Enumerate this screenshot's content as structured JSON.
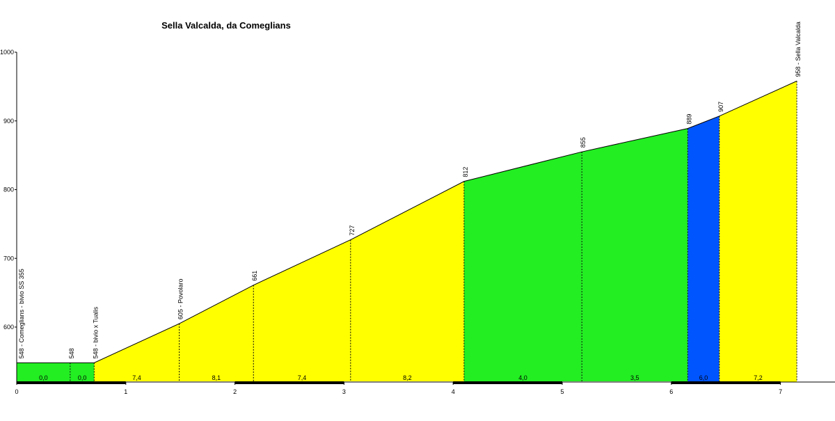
{
  "chart_data": {
    "type": "elevation_profile",
    "title": "Sella Valcalda, da Comeglians",
    "x": [
      0,
      0.49,
      0.71,
      1.49,
      2.17,
      3.06,
      4.1,
      5.18,
      6.15,
      6.44,
      7.15
    ],
    "values": [
      548,
      548,
      548,
      605,
      661,
      727,
      812,
      855,
      889,
      907,
      958
    ],
    "value_labels": [
      "548 - Comeglians - bivio SS 355",
      "548",
      "548 - bivio x Tualis",
      "605 - Povolaro",
      "661",
      "727",
      "812",
      "855",
      "889",
      "907",
      "958 - Sella Valcalda"
    ],
    "gradients": [
      0,
      0,
      7.4,
      8.1,
      7.4,
      8.2,
      4.0,
      3.5,
      6.0,
      7.2
    ],
    "gradient_labels": [
      "0,0",
      "0,0",
      "7,4",
      "8,1",
      "7,4",
      "8,2",
      "4,0",
      "3,5",
      "6,0",
      "7,2"
    ],
    "segment_colors": [
      "#22ee22",
      "#22ee22",
      "#ffff00",
      "#ffff00",
      "#ffff00",
      "#ffff00",
      "#22ee22",
      "#22ee22",
      "#0055ff",
      "#ffff00"
    ],
    "xlim": [
      0,
      7.15
    ],
    "ylim": [
      520,
      1000
    ],
    "xticks": [
      0,
      1,
      2,
      3,
      4,
      5,
      6,
      7
    ],
    "yticks": [
      600,
      700,
      800,
      900,
      1000
    ]
  }
}
